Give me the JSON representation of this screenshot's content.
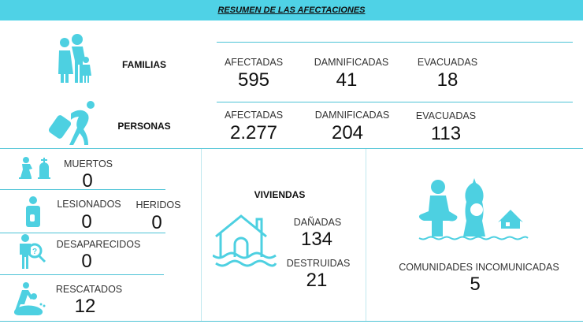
{
  "title": "RESUMEN DE LAS AFECTACIONES",
  "accent": "#4fd2e6",
  "familias": {
    "label": "FAMILIAS",
    "icon": "family-icon",
    "afectadas_label": "AFECTADAS",
    "afectadas": "595",
    "damnificadas_label": "DAMNIFICADAS",
    "damnificadas": "41",
    "evacuadas_label": "EVACUADAS",
    "evacuadas": "18"
  },
  "personas": {
    "label": "PERSONAS",
    "icon": "traveler-icon",
    "afectadas_label": "AFECTADAS",
    "afectadas": "2.277",
    "damnificadas_label": "DAMNIFICADAS",
    "damnificadas": "204",
    "evacuadas_label": "EVACUADAS",
    "evacuadas": "113"
  },
  "muertos": {
    "label": "MUERTOS",
    "value": "0",
    "icon": "grave-icon"
  },
  "lesionados": {
    "label": "LESIONADOS",
    "value": "0",
    "icon": "injured-icon"
  },
  "heridos": {
    "label": "HERIDOS",
    "value": "0"
  },
  "desaparecidos": {
    "label": "DESAPARECIDOS",
    "value": "0",
    "icon": "missing-person-icon"
  },
  "rescatados": {
    "label": "RESCATADOS",
    "value": "12",
    "icon": "rescue-icon"
  },
  "viviendas": {
    "label": "VIVIENDAS",
    "icon": "flooded-house-icon",
    "danadas_label": "DAÑADAS",
    "danadas": "134",
    "destruidas_label": "DESTRUIDAS",
    "destruidas": "21"
  },
  "comunidades": {
    "label": "COMUNIDADES INCOMUNICADAS",
    "value": "5",
    "icon": "isolated-community-icon"
  }
}
